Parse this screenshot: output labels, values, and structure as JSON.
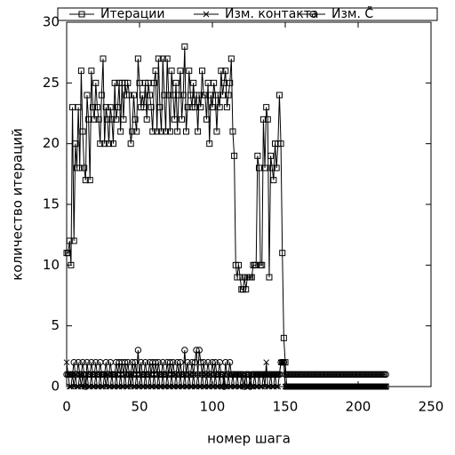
{
  "chart_data": {
    "type": "line",
    "xlabel": "номер шага",
    "ylabel": "количество итераций",
    "xlim": [
      0,
      250
    ],
    "xticks": [
      0,
      50,
      100,
      150,
      200,
      250
    ],
    "ylim": [
      0,
      30
    ],
    "yticks": [
      0,
      5,
      10,
      15,
      20,
      25,
      30
    ],
    "legend": "top",
    "x": [
      0,
      1,
      2,
      3,
      4,
      5,
      6,
      7,
      8,
      9,
      10,
      11,
      12,
      13,
      14,
      15,
      16,
      17,
      18,
      19,
      20,
      21,
      22,
      23,
      24,
      25,
      26,
      27,
      28,
      29,
      30,
      31,
      32,
      33,
      34,
      35,
      36,
      37,
      38,
      39,
      40,
      41,
      42,
      43,
      44,
      45,
      46,
      47,
      48,
      49,
      50,
      51,
      52,
      53,
      54,
      55,
      56,
      57,
      58,
      59,
      60,
      61,
      62,
      63,
      64,
      65,
      66,
      67,
      68,
      69,
      70,
      71,
      72,
      73,
      74,
      75,
      76,
      77,
      78,
      79,
      80,
      81,
      82,
      83,
      84,
      85,
      86,
      87,
      88,
      89,
      90,
      91,
      92,
      93,
      94,
      95,
      96,
      97,
      98,
      99,
      100,
      101,
      102,
      103,
      104,
      105,
      106,
      107,
      108,
      109,
      110,
      111,
      112,
      113,
      114,
      115,
      116,
      117,
      118,
      119,
      120,
      121,
      122,
      123,
      124,
      125,
      126,
      127,
      128,
      129,
      130,
      131,
      132,
      133,
      134,
      135,
      136,
      137,
      138,
      139,
      140,
      141,
      142,
      143,
      144,
      145,
      146,
      147,
      148,
      149,
      150,
      151,
      152,
      153,
      154,
      155,
      156,
      157,
      158,
      159,
      160,
      161,
      162,
      163,
      164,
      165,
      166,
      167,
      168,
      169,
      170,
      171,
      172,
      173,
      174,
      175,
      176,
      177,
      178,
      179,
      180,
      181,
      182,
      183,
      184,
      185,
      186,
      187,
      188,
      189,
      190,
      191,
      192,
      193,
      194,
      195,
      196,
      197,
      198,
      199,
      200,
      201,
      202,
      203,
      204,
      205,
      206,
      207,
      208,
      209,
      210,
      211,
      212,
      213,
      214,
      215,
      216,
      217,
      218,
      219
    ],
    "series": [
      {
        "name": "Итерации",
        "color": "#000000",
        "marker": "square",
        "values": [
          11,
          11,
          12,
          10,
          23,
          12,
          20,
          18,
          23,
          18,
          26,
          21,
          18,
          17,
          24,
          22,
          17,
          26,
          23,
          22,
          25,
          23,
          22,
          20,
          24,
          27,
          20,
          23,
          22,
          20,
          23,
          22,
          20,
          25,
          22,
          23,
          25,
          21,
          25,
          22,
          25,
          24,
          25,
          24,
          20,
          21,
          24,
          22,
          21,
          27,
          25,
          23,
          24,
          23,
          25,
          22,
          25,
          24,
          23,
          21,
          25,
          26,
          21,
          27,
          23,
          21,
          27,
          24,
          21,
          27,
          24,
          21,
          26,
          24,
          22,
          25,
          21,
          24,
          26,
          22,
          24,
          28,
          21,
          23,
          26,
          24,
          23,
          25,
          23,
          24,
          21,
          24,
          23,
          26,
          24,
          24,
          22,
          25,
          20,
          24,
          23,
          25,
          24,
          21,
          24,
          23,
          26,
          24,
          25,
          26,
          23,
          24,
          25,
          27,
          21,
          19,
          10,
          9,
          10,
          9,
          8,
          8,
          9,
          8,
          9,
          9,
          9,
          9,
          10,
          10,
          10,
          19,
          18,
          10,
          10,
          22,
          18,
          23,
          22,
          9,
          19,
          18,
          17,
          20,
          18,
          20,
          24,
          20,
          11,
          4,
          2,
          0,
          0,
          0,
          0,
          0,
          0,
          0,
          0,
          0,
          0,
          0,
          0,
          0,
          0,
          0,
          0,
          0,
          0,
          0,
          0,
          0,
          0,
          0,
          0,
          0,
          0,
          0,
          0,
          0,
          0,
          0,
          0,
          0,
          0,
          0,
          0,
          0,
          0,
          0,
          0,
          0,
          0,
          0,
          0,
          0,
          0,
          0,
          0,
          0,
          0,
          0,
          0,
          0,
          0,
          0,
          0,
          0,
          0,
          0,
          0,
          0,
          0,
          0,
          0,
          0,
          0,
          0,
          0,
          0
        ]
      },
      {
        "name": "Изм. контакта",
        "color": "#000000",
        "marker": "x",
        "values": [
          2,
          1,
          0,
          0,
          1,
          0,
          1,
          0,
          0,
          1,
          0,
          1,
          0,
          0,
          1,
          0,
          0,
          1,
          0,
          0,
          1,
          0,
          0,
          1,
          0,
          0,
          1,
          0,
          1,
          0,
          0,
          1,
          0,
          0,
          1,
          0,
          0,
          1,
          0,
          0,
          1,
          0,
          0,
          1,
          0,
          1,
          0,
          0,
          1,
          0,
          0,
          1,
          0,
          0,
          1,
          0,
          0,
          1,
          0,
          0,
          1,
          0,
          0,
          1,
          0,
          0,
          1,
          0,
          0,
          1,
          0,
          0,
          1,
          0,
          0,
          1,
          0,
          0,
          1,
          0,
          0,
          1,
          0,
          0,
          1,
          0,
          0,
          1,
          0,
          0,
          1,
          0,
          0,
          1,
          0,
          0,
          1,
          0,
          0,
          1,
          0,
          0,
          1,
          0,
          0,
          1,
          0,
          0,
          1,
          0,
          0,
          1,
          0,
          0,
          1,
          0,
          0,
          1,
          0,
          0,
          1,
          0,
          0,
          1,
          0,
          0,
          1,
          0,
          0,
          1,
          0,
          0,
          1,
          0,
          0,
          1,
          0,
          2,
          0,
          0,
          1,
          0,
          0,
          1,
          0,
          0,
          1,
          2,
          2,
          2,
          0,
          0,
          0,
          0,
          0,
          0,
          0,
          0,
          0,
          0,
          0,
          0,
          0,
          0,
          0,
          0,
          0,
          0,
          0,
          0,
          0,
          0,
          0,
          0,
          0,
          0,
          0,
          0,
          0,
          0,
          0,
          0,
          0,
          0,
          0,
          0,
          0,
          0,
          0,
          0,
          0,
          0,
          0,
          0,
          0,
          0,
          0,
          0,
          0,
          0,
          0,
          0,
          0,
          0,
          0,
          0,
          0,
          0,
          0,
          0,
          0,
          0,
          0,
          0,
          0,
          0,
          0,
          0,
          0,
          0
        ]
      },
      {
        "name": "Изм. C̃",
        "color": "#000000",
        "marker": "circle",
        "values": [
          1,
          1,
          1,
          1,
          1,
          2,
          1,
          1,
          2,
          1,
          1,
          2,
          1,
          0,
          2,
          1,
          1,
          2,
          1,
          1,
          2,
          1,
          1,
          2,
          1,
          1,
          1,
          2,
          1,
          1,
          2,
          1,
          1,
          1,
          2,
          1,
          2,
          1,
          2,
          1,
          2,
          1,
          2,
          1,
          1,
          2,
          1,
          2,
          1,
          3,
          1,
          2,
          1,
          1,
          2,
          1,
          1,
          2,
          1,
          2,
          1,
          2,
          1,
          2,
          1,
          1,
          2,
          1,
          1,
          2,
          1,
          2,
          1,
          2,
          1,
          1,
          2,
          1,
          2,
          1,
          1,
          3,
          1,
          2,
          1,
          1,
          2,
          1,
          2,
          3,
          1,
          3,
          2,
          1,
          2,
          1,
          1,
          2,
          1,
          1,
          2,
          1,
          2,
          1,
          1,
          2,
          1,
          1,
          0,
          2,
          1,
          1,
          2,
          1,
          1,
          1,
          1,
          1,
          1,
          1,
          1,
          1,
          0,
          1,
          1,
          1,
          0,
          1,
          1,
          1,
          1,
          1,
          1,
          1,
          1,
          1,
          1,
          1,
          1,
          1,
          1,
          1,
          1,
          1,
          1,
          1,
          1,
          2,
          2,
          2,
          1,
          1,
          1,
          1,
          1,
          1,
          1,
          1,
          1,
          1,
          1,
          1,
          1,
          1,
          1,
          1,
          1,
          1,
          1,
          1,
          1,
          1,
          1,
          1,
          1,
          1,
          1,
          1,
          1,
          1,
          1,
          1,
          1,
          1,
          1,
          1,
          1,
          1,
          1,
          1,
          1,
          1,
          1,
          1,
          1,
          1,
          1,
          1,
          1,
          1,
          1,
          1,
          1,
          1,
          1,
          1,
          1,
          1,
          1,
          1,
          1,
          1,
          1,
          1,
          1,
          1,
          1,
          1,
          1,
          1
        ]
      }
    ]
  }
}
